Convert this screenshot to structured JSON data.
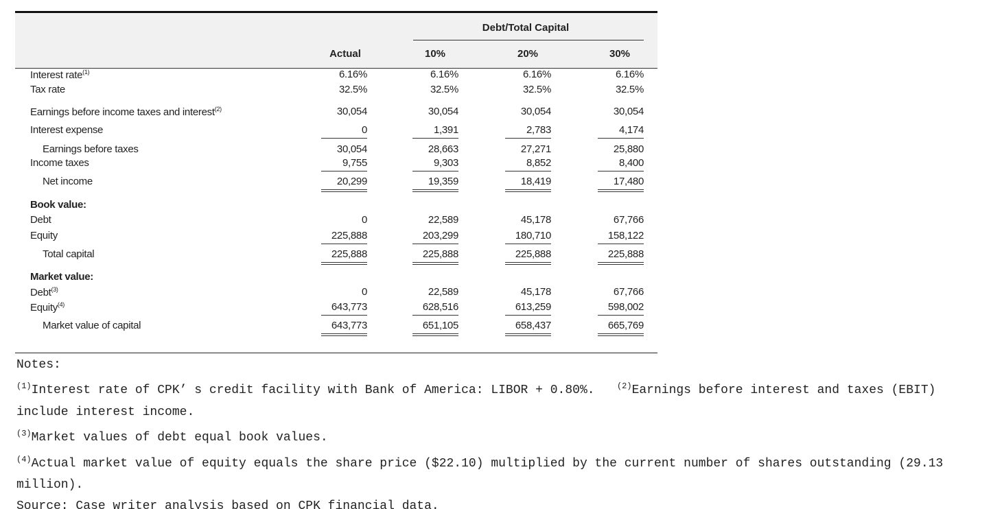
{
  "table": {
    "group_header": "Debt/Total Capital",
    "columns": [
      "Actual",
      "10%",
      "20%",
      "30%"
    ],
    "rows": [
      {
        "label": "Interest rate",
        "note": "(1)",
        "values": [
          "6.16%",
          "6.16%",
          "6.16%",
          "6.16%"
        ]
      },
      {
        "label": "Tax rate",
        "values": [
          "32.5%",
          "32.5%",
          "32.5%",
          "32.5%"
        ]
      },
      {
        "label": "Earnings before income taxes and interest",
        "note": "(2)",
        "values": [
          "30,054",
          "30,054",
          "30,054",
          "30,054"
        ]
      },
      {
        "label": "Interest expense",
        "values": [
          "0",
          "1,391",
          "2,783",
          "4,174"
        ]
      },
      {
        "label": "Earnings before taxes",
        "values": [
          "30,054",
          "28,663",
          "27,271",
          "25,880"
        ]
      },
      {
        "label": "Income taxes",
        "values": [
          "9,755",
          "9,303",
          "8,852",
          "8,400"
        ]
      },
      {
        "label": "Net income",
        "values": [
          "20,299",
          "19,359",
          "18,419",
          "17,480"
        ]
      },
      {
        "label": "Book value:"
      },
      {
        "label": "Debt",
        "values": [
          "0",
          "22,589",
          "45,178",
          "67,766"
        ]
      },
      {
        "label": "Equity",
        "values": [
          "225,888",
          "203,299",
          "180,710",
          "158,122"
        ]
      },
      {
        "label": "Total capital",
        "values": [
          "225,888",
          "225,888",
          "225,888",
          "225,888"
        ]
      },
      {
        "label": "Market value:"
      },
      {
        "label": "Debt",
        "note": "(3)",
        "values": [
          "0",
          "22,589",
          "45,178",
          "67,766"
        ]
      },
      {
        "label": "Equity",
        "note": "(4)",
        "values": [
          "643,773",
          "628,516",
          "613,259",
          "598,002"
        ]
      },
      {
        "label": "Market value of capital",
        "values": [
          "643,773",
          "651,105",
          "658,437",
          "665,769"
        ]
      }
    ]
  },
  "notes": {
    "title": "Notes:",
    "paragraphs": [
      [
        {
          "marker": "(1)",
          "text": "Interest rate of CPK’ s credit facility with Bank of America: LIBOR + 0.80%."
        },
        {
          "marker": "(2)",
          "text": "Earnings before interest and taxes (EBIT) include interest income."
        }
      ],
      [
        {
          "marker": "(3)",
          "text": "Market values of debt equal book values."
        }
      ],
      [
        {
          "marker": "(4)",
          "text": "Actual market value of equity equals the share price ($22.10) multiplied by the current number of shares outstanding (29.13 million)."
        }
      ]
    ],
    "source": "Source: Case writer analysis based on CPK financial data."
  }
}
